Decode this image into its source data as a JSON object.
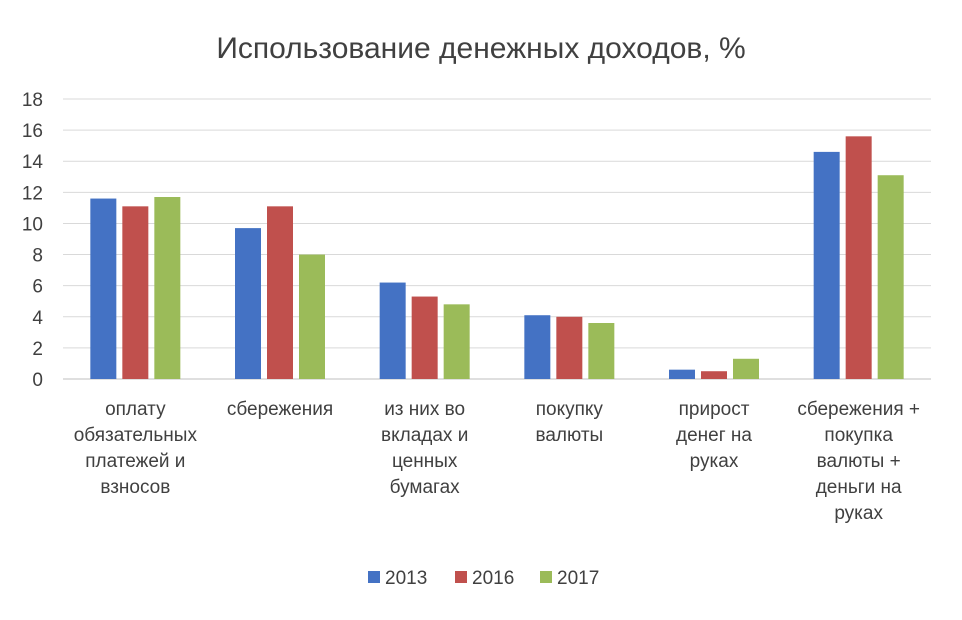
{
  "chart_data": {
    "type": "bar",
    "title": "Использование денежных доходов, %",
    "categories": [
      [
        "оплату",
        "обязательных",
        "платежей и",
        "взносов"
      ],
      [
        "сбережения"
      ],
      [
        "из них во",
        "вкладах и",
        "ценных",
        "бумагах"
      ],
      [
        "покупку",
        "валюты"
      ],
      [
        "прирост",
        "денег на",
        "руках"
      ],
      [
        "сбережения +",
        "покупка",
        "валюты +",
        "деньги на",
        "руках"
      ]
    ],
    "series": [
      {
        "name": "2013",
        "color": "#4472c4",
        "values": [
          11.6,
          9.7,
          6.2,
          4.1,
          0.6,
          14.6
        ]
      },
      {
        "name": "2016",
        "color": "#c0504d",
        "values": [
          11.1,
          11.1,
          5.3,
          4.0,
          0.5,
          15.6
        ]
      },
      {
        "name": "2017",
        "color": "#9bbb59",
        "values": [
          11.7,
          8.0,
          4.8,
          3.6,
          1.3,
          13.1
        ]
      }
    ],
    "yticks": [
      "0",
      "2",
      "4",
      "6",
      "8",
      "10",
      "12",
      "14",
      "16",
      "18"
    ],
    "ylim": [
      0,
      18
    ],
    "grid": true,
    "legend": "bottom"
  }
}
